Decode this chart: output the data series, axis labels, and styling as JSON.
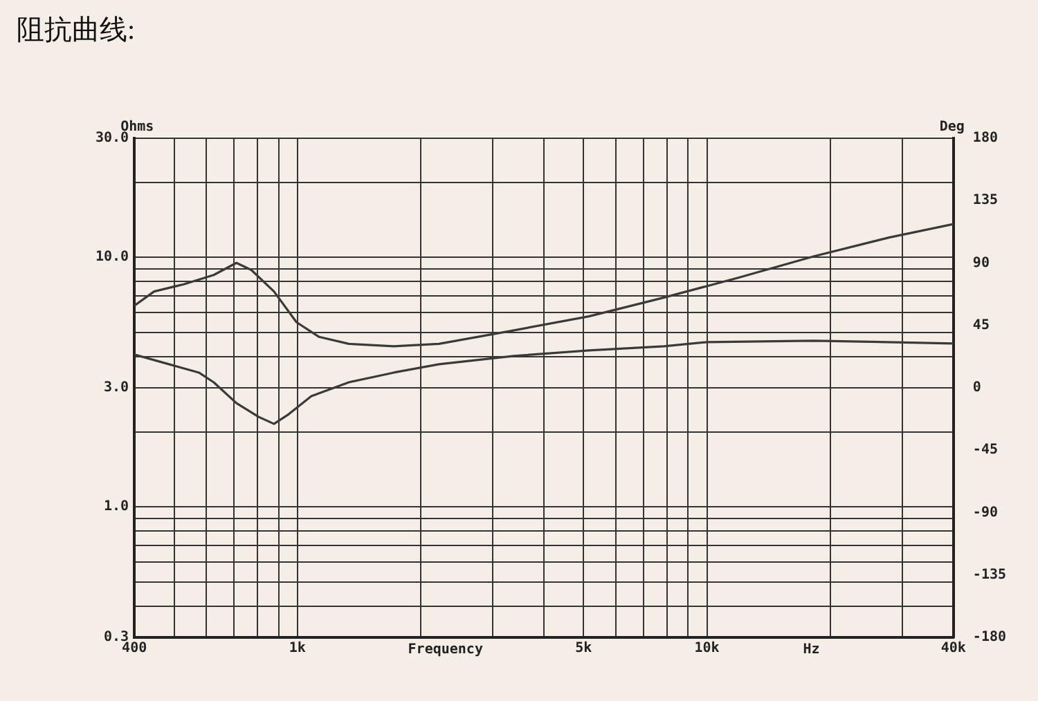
{
  "chart_data": {
    "type": "line",
    "title": "阻抗曲线:",
    "xlabel": "Frequency",
    "ylabel": "Ohms",
    "y2label": "Deg",
    "annotations": [
      "Hz"
    ],
    "log": "xy",
    "grid": true,
    "legend": false,
    "marker": "none",
    "line_style": "solid",
    "xlim": [
      400,
      40000
    ],
    "xticks": [
      400,
      {
        "value": 500,
        "label": null
      },
      {
        "value": 600,
        "label": null
      },
      {
        "value": 700,
        "label": null
      },
      {
        "value": 800,
        "label": null
      },
      {
        "value": 900,
        "label": null
      },
      {
        "value": 1000,
        "label": "1k"
      },
      {
        "value": 2000,
        "label": null
      },
      {
        "value": 3000,
        "label": null
      },
      {
        "value": 4000,
        "label": null
      },
      {
        "value": 5000,
        "label": "5k"
      },
      {
        "value": 6000,
        "label": null
      },
      {
        "value": 7000,
        "label": null
      },
      {
        "value": 8000,
        "label": null
      },
      {
        "value": 9000,
        "label": null
      },
      {
        "value": 10000,
        "label": "10k"
      },
      {
        "value": 20000,
        "label": null
      },
      {
        "value": 30000,
        "label": null
      },
      {
        "value": 40000,
        "label": "40k"
      }
    ],
    "ylim": [
      0.3,
      30
    ],
    "yticks": [
      {
        "value": 0.3,
        "label": "0.3"
      },
      {
        "value": 0.4,
        "label": null
      },
      {
        "value": 0.5,
        "label": null
      },
      {
        "value": 0.6,
        "label": null
      },
      {
        "value": 0.7,
        "label": null
      },
      {
        "value": 0.8,
        "label": null
      },
      {
        "value": 0.9,
        "label": null
      },
      {
        "value": 1,
        "label": "1.0"
      },
      {
        "value": 2,
        "label": null
      },
      {
        "value": 3,
        "label": "3.0"
      },
      {
        "value": 4,
        "label": null
      },
      {
        "value": 5,
        "label": null
      },
      {
        "value": 6,
        "label": null
      },
      {
        "value": 7,
        "label": null
      },
      {
        "value": 8,
        "label": null
      },
      {
        "value": 9,
        "label": null
      },
      {
        "value": 10,
        "label": "10.0"
      },
      {
        "value": 20,
        "label": null
      },
      {
        "value": 30,
        "label": "30.0"
      }
    ],
    "y2lim": [
      -180,
      180
    ],
    "y2ticks": [
      -180,
      -135,
      -90,
      -45,
      0,
      45,
      90,
      135,
      180
    ],
    "series": [
      {
        "color": "#3a3a3a",
        "x": [
          400,
          447,
          528,
          625,
          710,
          772,
          877,
          995,
          1130,
          1336,
          1720,
          2217,
          3380,
          5150,
          7860,
          11970,
          18250,
          27820,
          40000
        ],
        "values": [
          6.4,
          7.3,
          7.8,
          8.5,
          9.5,
          8.9,
          7.3,
          5.5,
          4.8,
          4.5,
          4.4,
          4.5,
          5.1,
          5.8,
          6.9,
          8.3,
          10.1,
          12.0,
          13.6
        ]
      },
      {
        "color": "#3a3a3a",
        "axis": "y2",
        "x": [
          400,
          486,
          575,
          625,
          710,
          805,
          877,
          953,
          1082,
          1336,
          1720,
          2217,
          3380,
          5150,
          7860,
          10000,
          18250,
          40000
        ],
        "values": [
          24,
          17,
          11,
          4,
          -11,
          -21,
          -26,
          -19,
          -6,
          4,
          11,
          17,
          23,
          27,
          30,
          33,
          34,
          32
        ]
      }
    ]
  }
}
